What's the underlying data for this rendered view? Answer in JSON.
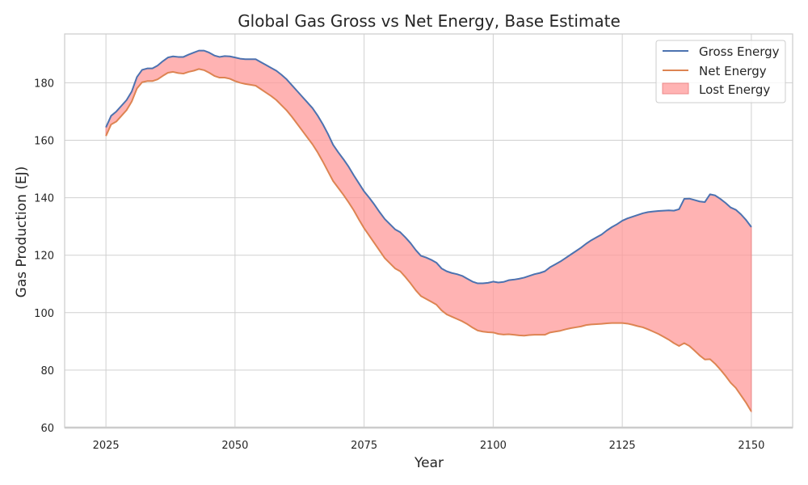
{
  "chart_data": {
    "type": "area",
    "title": "Global Gas Gross vs Net Energy, Base Estimate",
    "xlabel": "Year",
    "ylabel": "Gas Production (EJ)",
    "xlim": [
      2017,
      2158
    ],
    "ylim": [
      60,
      197
    ],
    "x_ticks": [
      2025,
      2050,
      2075,
      2100,
      2125,
      2150
    ],
    "y_ticks": [
      60,
      80,
      100,
      120,
      140,
      160,
      180
    ],
    "grid": true,
    "legend_position": "top-right",
    "colors": {
      "gross": "#4c72b0",
      "net": "#dd8452",
      "lost_fill": "#ff9999",
      "grid": "#d0d0d0"
    },
    "series": [
      {
        "name": "Gross Energy",
        "kind": "line",
        "color": "#4c72b0",
        "points": [
          [
            2025,
            164.5
          ],
          [
            2026,
            168.5
          ],
          [
            2027,
            170
          ],
          [
            2028,
            172
          ],
          [
            2029,
            174
          ],
          [
            2030,
            177
          ],
          [
            2031,
            182
          ],
          [
            2032,
            184.5
          ],
          [
            2033,
            185
          ],
          [
            2034,
            185
          ],
          [
            2035,
            186
          ],
          [
            2036,
            187.5
          ],
          [
            2037,
            188.8
          ],
          [
            2038,
            189.2
          ],
          [
            2039,
            189
          ],
          [
            2040,
            189
          ],
          [
            2041,
            189.8
          ],
          [
            2042,
            190.5
          ],
          [
            2043,
            191.2
          ],
          [
            2044,
            191.2
          ],
          [
            2045,
            190.5
          ],
          [
            2046,
            189.5
          ],
          [
            2047,
            189
          ],
          [
            2048,
            189.3
          ],
          [
            2049,
            189.2
          ],
          [
            2050,
            188.8
          ],
          [
            2051,
            188.4
          ],
          [
            2052,
            188.2
          ],
          [
            2053,
            188.2
          ],
          [
            2054,
            188.2
          ],
          [
            2055,
            187.2
          ],
          [
            2056,
            186.2
          ],
          [
            2057,
            185.2
          ],
          [
            2058,
            184.2
          ],
          [
            2059,
            182.8
          ],
          [
            2060,
            181.2
          ],
          [
            2061,
            179.2
          ],
          [
            2062,
            177.2
          ],
          [
            2063,
            175.2
          ],
          [
            2064,
            173.2
          ],
          [
            2065,
            171.2
          ],
          [
            2066,
            168.6
          ],
          [
            2067,
            165.6
          ],
          [
            2068,
            162.2
          ],
          [
            2069,
            158.4
          ],
          [
            2070,
            155.8
          ],
          [
            2071,
            153.4
          ],
          [
            2072,
            150.8
          ],
          [
            2073,
            147.8
          ],
          [
            2074,
            145
          ],
          [
            2075,
            142.2
          ],
          [
            2076,
            140
          ],
          [
            2077,
            137.6
          ],
          [
            2078,
            135
          ],
          [
            2079,
            132.6
          ],
          [
            2080,
            130.8
          ],
          [
            2081,
            129
          ],
          [
            2082,
            128
          ],
          [
            2083,
            126.2
          ],
          [
            2084,
            124.2
          ],
          [
            2085,
            121.8
          ],
          [
            2086,
            119.8
          ],
          [
            2087,
            119.2
          ],
          [
            2088,
            118.4
          ],
          [
            2089,
            117.4
          ],
          [
            2090,
            115.4
          ],
          [
            2091,
            114.4
          ],
          [
            2092,
            113.8
          ],
          [
            2093,
            113.4
          ],
          [
            2094,
            112.8
          ],
          [
            2095,
            111.8
          ],
          [
            2096,
            110.8
          ],
          [
            2097,
            110.2
          ],
          [
            2098,
            110.2
          ],
          [
            2099,
            110.4
          ],
          [
            2100,
            110.8
          ],
          [
            2101,
            110.5
          ],
          [
            2102,
            110.7
          ],
          [
            2103,
            111.3
          ],
          [
            2104,
            111.5
          ],
          [
            2105,
            111.8
          ],
          [
            2106,
            112.2
          ],
          [
            2107,
            112.8
          ],
          [
            2108,
            113.4
          ],
          [
            2109,
            113.8
          ],
          [
            2110,
            114.4
          ],
          [
            2111,
            115.8
          ],
          [
            2112,
            116.8
          ],
          [
            2113,
            117.8
          ],
          [
            2114,
            119
          ],
          [
            2115,
            120.2
          ],
          [
            2116,
            121.4
          ],
          [
            2117,
            122.6
          ],
          [
            2118,
            124
          ],
          [
            2119,
            125.2
          ],
          [
            2120,
            126.2
          ],
          [
            2121,
            127.2
          ],
          [
            2122,
            128.6
          ],
          [
            2123,
            129.8
          ],
          [
            2124,
            130.8
          ],
          [
            2125,
            132
          ],
          [
            2126,
            132.8
          ],
          [
            2127,
            133.4
          ],
          [
            2128,
            134
          ],
          [
            2129,
            134.6
          ],
          [
            2130,
            135
          ],
          [
            2131,
            135.2
          ],
          [
            2132,
            135.4
          ],
          [
            2133,
            135.5
          ],
          [
            2134,
            135.6
          ],
          [
            2135,
            135.5
          ],
          [
            2136,
            136
          ],
          [
            2137,
            139.6
          ],
          [
            2138,
            139.7
          ],
          [
            2139,
            139.2
          ],
          [
            2140,
            138.7
          ],
          [
            2141,
            138.5
          ],
          [
            2142,
            141.2
          ],
          [
            2143,
            140.8
          ],
          [
            2144,
            139.6
          ],
          [
            2145,
            138.2
          ],
          [
            2146,
            136.6
          ],
          [
            2147,
            135.8
          ],
          [
            2148,
            134.2
          ],
          [
            2149,
            132.2
          ],
          [
            2150,
            129.8
          ]
        ]
      },
      {
        "name": "Net Energy",
        "kind": "line",
        "color": "#dd8452",
        "points": [
          [
            2025,
            161.5
          ],
          [
            2026,
            165.5
          ],
          [
            2027,
            166.5
          ],
          [
            2028,
            168.5
          ],
          [
            2029,
            170.5
          ],
          [
            2030,
            173.5
          ],
          [
            2031,
            178
          ],
          [
            2032,
            180.2
          ],
          [
            2033,
            180.6
          ],
          [
            2034,
            180.6
          ],
          [
            2035,
            181.2
          ],
          [
            2036,
            182.4
          ],
          [
            2037,
            183.5
          ],
          [
            2038,
            183.8
          ],
          [
            2039,
            183.4
          ],
          [
            2040,
            183.2
          ],
          [
            2041,
            183.8
          ],
          [
            2042,
            184.2
          ],
          [
            2043,
            184.8
          ],
          [
            2044,
            184.4
          ],
          [
            2045,
            183.5
          ],
          [
            2046,
            182.4
          ],
          [
            2047,
            181.8
          ],
          [
            2048,
            181.8
          ],
          [
            2049,
            181.4
          ],
          [
            2050,
            180.6
          ],
          [
            2051,
            180
          ],
          [
            2052,
            179.6
          ],
          [
            2053,
            179.3
          ],
          [
            2054,
            179
          ],
          [
            2055,
            177.8
          ],
          [
            2056,
            176.6
          ],
          [
            2057,
            175.4
          ],
          [
            2058,
            174
          ],
          [
            2059,
            172.2
          ],
          [
            2060,
            170.4
          ],
          [
            2061,
            168.2
          ],
          [
            2062,
            165.8
          ],
          [
            2063,
            163.4
          ],
          [
            2064,
            161
          ],
          [
            2065,
            158.6
          ],
          [
            2066,
            155.8
          ],
          [
            2067,
            152.6
          ],
          [
            2068,
            149.2
          ],
          [
            2069,
            145.8
          ],
          [
            2070,
            143.4
          ],
          [
            2071,
            141
          ],
          [
            2072,
            138.4
          ],
          [
            2073,
            135.6
          ],
          [
            2074,
            132.4
          ],
          [
            2075,
            129.4
          ],
          [
            2076,
            126.8
          ],
          [
            2077,
            124.2
          ],
          [
            2078,
            121.6
          ],
          [
            2079,
            119
          ],
          [
            2080,
            117.2
          ],
          [
            2081,
            115.4
          ],
          [
            2082,
            114.4
          ],
          [
            2083,
            112.4
          ],
          [
            2084,
            110.2
          ],
          [
            2085,
            107.8
          ],
          [
            2086,
            105.8
          ],
          [
            2087,
            104.8
          ],
          [
            2088,
            103.8
          ],
          [
            2089,
            102.8
          ],
          [
            2090,
            100.8
          ],
          [
            2091,
            99.4
          ],
          [
            2092,
            98.6
          ],
          [
            2093,
            97.8
          ],
          [
            2094,
            97
          ],
          [
            2095,
            96
          ],
          [
            2096,
            94.8
          ],
          [
            2097,
            93.8
          ],
          [
            2098,
            93.4
          ],
          [
            2099,
            93.2
          ],
          [
            2100,
            93.1
          ],
          [
            2101,
            92.6
          ],
          [
            2102,
            92.4
          ],
          [
            2103,
            92.5
          ],
          [
            2104,
            92.3
          ],
          [
            2105,
            92.1
          ],
          [
            2106,
            92
          ],
          [
            2107,
            92.2
          ],
          [
            2108,
            92.3
          ],
          [
            2109,
            92.3
          ],
          [
            2110,
            92.3
          ],
          [
            2111,
            93.1
          ],
          [
            2112,
            93.4
          ],
          [
            2113,
            93.7
          ],
          [
            2114,
            94.2
          ],
          [
            2115,
            94.6
          ],
          [
            2116,
            94.9
          ],
          [
            2117,
            95.2
          ],
          [
            2118,
            95.7
          ],
          [
            2119,
            95.9
          ],
          [
            2120,
            96
          ],
          [
            2121,
            96.1
          ],
          [
            2122,
            96.3
          ],
          [
            2123,
            96.4
          ],
          [
            2124,
            96.4
          ],
          [
            2125,
            96.4
          ],
          [
            2126,
            96.2
          ],
          [
            2127,
            95.8
          ],
          [
            2128,
            95.3
          ],
          [
            2129,
            94.9
          ],
          [
            2130,
            94.2
          ],
          [
            2131,
            93.4
          ],
          [
            2132,
            92.6
          ],
          [
            2133,
            91.6
          ],
          [
            2134,
            90.6
          ],
          [
            2135,
            89.4
          ],
          [
            2136,
            88.4
          ],
          [
            2137,
            89.4
          ],
          [
            2138,
            88.4
          ],
          [
            2139,
            86.8
          ],
          [
            2140,
            85.1
          ],
          [
            2141,
            83.7
          ],
          [
            2142,
            83.8
          ],
          [
            2143,
            82.2
          ],
          [
            2144,
            80.2
          ],
          [
            2145,
            78
          ],
          [
            2146,
            75.6
          ],
          [
            2147,
            73.8
          ],
          [
            2148,
            71.2
          ],
          [
            2149,
            68.6
          ],
          [
            2150,
            65.6
          ]
        ]
      },
      {
        "name": "Lost Energy",
        "kind": "fill_between",
        "color": "#ff9999",
        "between": [
          "Gross Energy",
          "Net Energy"
        ]
      }
    ]
  }
}
